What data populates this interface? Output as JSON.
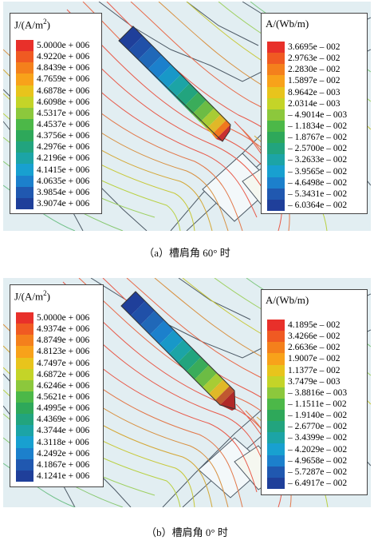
{
  "figures": [
    {
      "caption": "（a）槽肩角 60° 时",
      "j_legend": {
        "title_main": "J/(A/m",
        "title_sup": "2",
        "title_end": ")",
        "values": [
          "5.0000e + 006",
          "4.9220e + 006",
          "4.8439e + 006",
          "4.7659e + 006",
          "4.6878e + 006",
          "4.6098e + 006",
          "4.5317e + 006",
          "4.4537e + 006",
          "4.3756e + 006",
          "4.2976e + 006",
          "4.2196e + 006",
          "4.1415e + 006",
          "4.0635e + 006",
          "3.9854e + 006",
          "3.9074e + 006"
        ]
      },
      "a_legend": {
        "title": "A/(Wb/m)",
        "values": [
          "3.6695e – 002",
          "2.9763e – 002",
          "2.2830e – 002",
          "1.5897e – 002",
          "8.9642e – 003",
          "2.0314e – 003",
          "– 4.9014e – 003",
          "– 1.1834e – 002",
          "– 1.8767e – 002",
          "– 2.5700e – 002",
          "– 3.2633e – 002",
          "– 3.9565e – 002",
          "– 4.6498e – 002",
          "– 5.3431e – 002",
          "– 6.0364e – 002"
        ]
      }
    },
    {
      "caption": "（b）槽肩角 0° 时",
      "j_legend": {
        "title_main": "J/(A/m",
        "title_sup": "2",
        "title_end": ")",
        "values": [
          "5.0000e + 006",
          "4.9374e + 006",
          "4.8749e + 006",
          "4.8123e + 006",
          "4.7497e + 006",
          "4.6872e + 006",
          "4.6246e + 006",
          "4.5621e + 006",
          "4.4995e + 006",
          "4.4369e + 006",
          "4.3744e + 006",
          "4.3118e + 006",
          "4.2492e + 006",
          "4.1867e + 006",
          "4.1241e + 006"
        ]
      },
      "a_legend": {
        "title": "A/(Wb/m)",
        "values": [
          "4.1895e – 002",
          "3.4266e – 002",
          "2.6636e – 002",
          "1.9007e – 002",
          "1.1377e – 002",
          "3.7479e – 003",
          "– 3.8816e – 003",
          "– 1.1511e – 002",
          "– 1.9140e – 002",
          "– 2.6770e – 002",
          "– 3.4399e – 002",
          "– 4.2029e – 002",
          "– 4.9658e – 002",
          "– 5.7287e – 002",
          "– 6.4917e – 002"
        ]
      }
    }
  ],
  "colors": {
    "scale": [
      "#e8302a",
      "#f05a22",
      "#f4801c",
      "#f8a21a",
      "#e8c41c",
      "#c4d428",
      "#8cc83c",
      "#4cb848",
      "#2ea85a",
      "#22a47e",
      "#1ca4a6",
      "#18a0d0",
      "#1c80cc",
      "#2058b0",
      "#1f3f9a"
    ],
    "background": "#e2eef2",
    "contour_warm": "#e85a4a",
    "contour_cool": "#9ed060",
    "geometry": "#4d5a66"
  }
}
